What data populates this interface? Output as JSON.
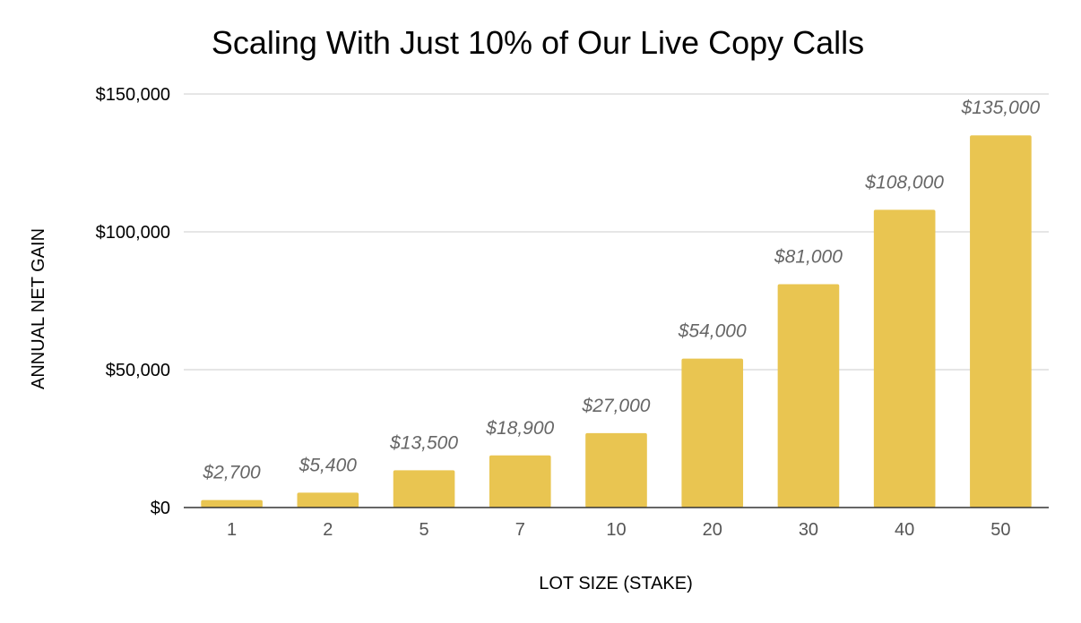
{
  "chart_data": {
    "type": "bar",
    "title": "Scaling With Just 10% of Our Live Copy Calls",
    "xlabel": "LOT SIZE (STAKE)",
    "ylabel": "ANNUAL NET GAIN",
    "categories": [
      "1",
      "2",
      "5",
      "7",
      "10",
      "20",
      "30",
      "40",
      "50"
    ],
    "values": [
      2700,
      5400,
      13500,
      18900,
      27000,
      54000,
      81000,
      108000,
      135000
    ],
    "data_labels": [
      "$2,700",
      "$5,400",
      "$13,500",
      "$18,900",
      "$27,000",
      "$54,000",
      "$81,000",
      "$108,000",
      "$135,000"
    ],
    "yticks": [
      0,
      50000,
      100000,
      150000
    ],
    "ytick_labels": [
      "$0",
      "$50,000",
      "$100,000",
      "$150,000"
    ],
    "ylim": [
      0,
      150000
    ],
    "grid": true,
    "legend": "none",
    "bar_color": "#E9C551",
    "grid_color": "#CCCCCC",
    "axis_color": "#333333"
  }
}
